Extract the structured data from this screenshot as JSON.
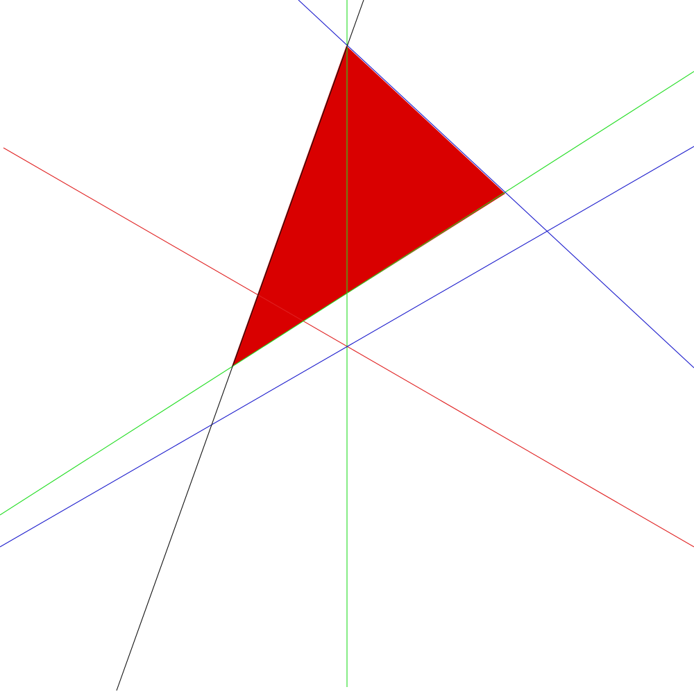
{
  "background": "#ffffff",
  "colors": {
    "fill": "#d90000",
    "red": "#e02020",
    "green": "#22dd22",
    "blue": "#1a1acc",
    "black": "#111111"
  },
  "shapes": [
    {
      "name": "filled-triangle",
      "kind": "polygon",
      "color": "fill"
    }
  ],
  "lines": [
    {
      "name": "red-line",
      "color": "red"
    },
    {
      "name": "green-vertical-line",
      "color": "green"
    },
    {
      "name": "green-diagonal-line",
      "color": "green"
    },
    {
      "name": "blue-steep-line",
      "color": "blue"
    },
    {
      "name": "blue-shallow-line",
      "color": "blue"
    },
    {
      "name": "black-line",
      "color": "black"
    }
  ]
}
